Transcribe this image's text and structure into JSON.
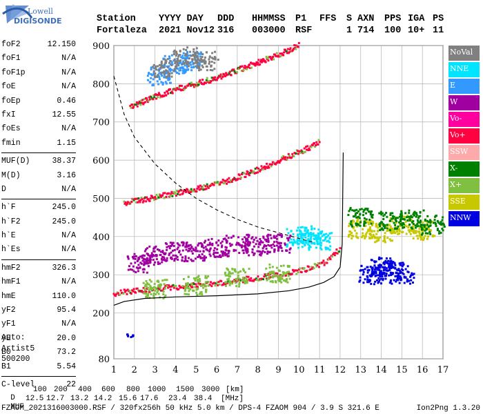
{
  "logo": {
    "line1": "Lowell",
    "line2": "DIGISONDE"
  },
  "header": {
    "labels": [
      "Station",
      "YYYY DAY",
      "DDD",
      "HHMMSS",
      "P1",
      "FFS",
      "S",
      "AXN",
      "PPS",
      "IGA",
      "PS"
    ],
    "values": [
      "Fortaleza",
      "2021 Nov12",
      "316",
      "003000",
      "RSF",
      "1",
      "714",
      "100",
      "10+",
      "11"
    ]
  },
  "params": [
    {
      "label": "foF2",
      "value": "12.150"
    },
    {
      "label": "foF1",
      "value": "N/A"
    },
    {
      "label": "foF1p",
      "value": "N/A"
    },
    {
      "label": "foE",
      "value": "N/A"
    },
    {
      "label": "foEp",
      "value": "0.46"
    },
    {
      "label": "fxI",
      "value": "12.55"
    },
    {
      "label": "foEs",
      "value": "N/A"
    },
    {
      "label": "fmin",
      "value": "1.15"
    },
    {
      "sep": true
    },
    {
      "label": "MUF(D)",
      "value": "38.37"
    },
    {
      "label": "M(D)",
      "value": "3.16"
    },
    {
      "label": "D",
      "value": "N/A"
    },
    {
      "sep": true
    },
    {
      "label": "h`F",
      "value": "245.0"
    },
    {
      "label": "h`F2",
      "value": "245.0"
    },
    {
      "label": "h`E",
      "value": "N/A"
    },
    {
      "label": "h`Es",
      "value": "N/A"
    },
    {
      "sep": true
    },
    {
      "label": "hmF2",
      "value": "326.3"
    },
    {
      "label": "hmF1",
      "value": "N/A"
    },
    {
      "label": "hmE",
      "value": "110.0"
    },
    {
      "label": "yF2",
      "value": "95.4"
    },
    {
      "label": "yF1",
      "value": "N/A"
    },
    {
      "label": "yE",
      "value": "20.0"
    },
    {
      "label": "B0",
      "value": "73.2"
    },
    {
      "label": "B1",
      "value": "5.54"
    },
    {
      "sep": true
    },
    {
      "label": "C-level",
      "value": "22"
    }
  ],
  "extra": {
    "auto": "Auto:",
    "artist": "Artist5",
    "code": "500200"
  },
  "legend": [
    {
      "label": "NoVal",
      "color": "#808080"
    },
    {
      "label": "NNE",
      "color": "#00e5ff"
    },
    {
      "label": "E",
      "color": "#3399ff"
    },
    {
      "label": "W",
      "color": "#a000a0"
    },
    {
      "label": "Vo-",
      "color": "#ff00a0"
    },
    {
      "label": "Vo+",
      "color": "#ff0040"
    },
    {
      "label": "SSW",
      "color": "#ffaaaa"
    },
    {
      "label": "X-",
      "color": "#008000"
    },
    {
      "label": "X+",
      "color": "#80c040"
    },
    {
      "label": "SSE",
      "color": "#c8c800"
    },
    {
      "label": "NNW",
      "color": "#0000e0"
    }
  ],
  "footer": {
    "d_label": "D",
    "d_values": [
      "100",
      "200",
      "400",
      "600",
      "800",
      "1000",
      "1500",
      "3000"
    ],
    "d_unit": "[km]",
    "muf_label": "MUF",
    "muf_values": [
      "12.5",
      "12.7",
      "13.2",
      "14.2",
      "15.6",
      "17.6",
      "23.4",
      "38.4"
    ],
    "muf_unit": "[MHz]",
    "file_line": "FZAOM_2021316003000.RSF / 320fx256h 50 kHz 5.0 km / DPS-4 FZAOM 904 / 3.9 S 321.6 E",
    "version": "Ion2Png 1.3.20"
  },
  "chart_data": {
    "type": "scatter",
    "title": "",
    "xlabel": "",
    "ylabel": "",
    "xlim": [
      1,
      17
    ],
    "ylim": [
      80,
      900
    ],
    "x_ticks": [
      1,
      2,
      3,
      4,
      5,
      6,
      7,
      8,
      9,
      10,
      11,
      12,
      13,
      14,
      15,
      16,
      17
    ],
    "y_ticks": [
      80,
      200,
      300,
      400,
      500,
      600,
      700,
      800,
      900
    ],
    "grid": true,
    "series": [
      {
        "name": "Vo+",
        "color": "#ff0040",
        "kind": "trace",
        "x": [
          1.0,
          2.0,
          3.0,
          4.0,
          5.0,
          6.0,
          7.0,
          8.0,
          9.0,
          10.0,
          11.0,
          11.5,
          12.0
        ],
        "y": [
          250,
          258,
          263,
          268,
          272,
          278,
          285,
          292,
          300,
          310,
          325,
          340,
          370
        ]
      },
      {
        "name": "Vo+",
        "color": "#ff0040",
        "kind": "trace",
        "x": [
          1.5,
          2.5,
          3.5,
          4.5,
          5.5,
          6.5,
          7.5,
          8.5,
          9.5,
          10.5,
          11.0
        ],
        "y": [
          488,
          497,
          508,
          518,
          530,
          545,
          565,
          585,
          610,
          632,
          650
        ]
      },
      {
        "name": "Vo+",
        "color": "#ff0040",
        "kind": "trace",
        "x": [
          1.8,
          3.0,
          4.0,
          5.0,
          6.0,
          7.0,
          8.0,
          9.0,
          10.0
        ],
        "y": [
          740,
          765,
          785,
          800,
          815,
          835,
          855,
          875,
          900
        ]
      },
      {
        "name": "E",
        "color": "#3399ff",
        "kind": "cluster",
        "x": [
          3.2,
          4.0,
          4.8
        ],
        "y": [
          820,
          850,
          860
        ]
      },
      {
        "name": "W",
        "color": "#a000a0",
        "kind": "cluster",
        "x": [
          2.2,
          3.0,
          4.0,
          5.0,
          6.0,
          7.0,
          8.0,
          9.0
        ],
        "y": [
          330,
          350,
          360,
          360,
          370,
          380,
          375,
          380
        ]
      },
      {
        "name": "NNE",
        "color": "#00e5ff",
        "kind": "cluster",
        "x": [
          10.0,
          10.5,
          11.0
        ],
        "y": [
          395,
          405,
          390
        ]
      },
      {
        "name": "NoVal",
        "color": "#808080",
        "kind": "cluster",
        "x": [
          3.5,
          4.5,
          5.5
        ],
        "y": [
          840,
          870,
          860
        ]
      },
      {
        "name": "NNW",
        "color": "#0000e0",
        "kind": "cluster",
        "x": [
          13.5,
          14.0,
          14.5,
          15.0,
          1.8
        ],
        "y": [
          300,
          320,
          310,
          300,
          140
        ]
      },
      {
        "name": "SSE",
        "color": "#c8c800",
        "kind": "cluster",
        "x": [
          13.0,
          14.0,
          15.0,
          16.0
        ],
        "y": [
          420,
          410,
          430,
          415
        ]
      },
      {
        "name": "X+",
        "color": "#80c040",
        "kind": "cluster",
        "x": [
          3.0,
          5.0,
          7.0,
          9.0
        ],
        "y": [
          262,
          272,
          292,
          302
        ]
      },
      {
        "name": "X-",
        "color": "#008000",
        "kind": "cluster",
        "x": [
          13.0,
          14.5,
          15.5,
          16.5
        ],
        "y": [
          450,
          440,
          445,
          430
        ]
      }
    ],
    "profile_curve": {
      "x": [
        1.0,
        1.5,
        2.5,
        4.0,
        6.0,
        8.0,
        9.5,
        10.5,
        11.2,
        11.7,
        12.0,
        12.1,
        12.15
      ],
      "y": [
        220,
        230,
        238,
        242,
        245,
        250,
        258,
        268,
        280,
        295,
        320,
        380,
        620
      ]
    },
    "muf_curve": {
      "x": [
        1.0,
        1.5,
        2.0,
        3.0,
        4.0,
        5.0,
        6.0,
        7.0,
        8.0,
        9.0,
        10.0,
        10.7
      ],
      "y": [
        820,
        720,
        660,
        590,
        540,
        500,
        470,
        445,
        425,
        410,
        395,
        385
      ]
    }
  }
}
